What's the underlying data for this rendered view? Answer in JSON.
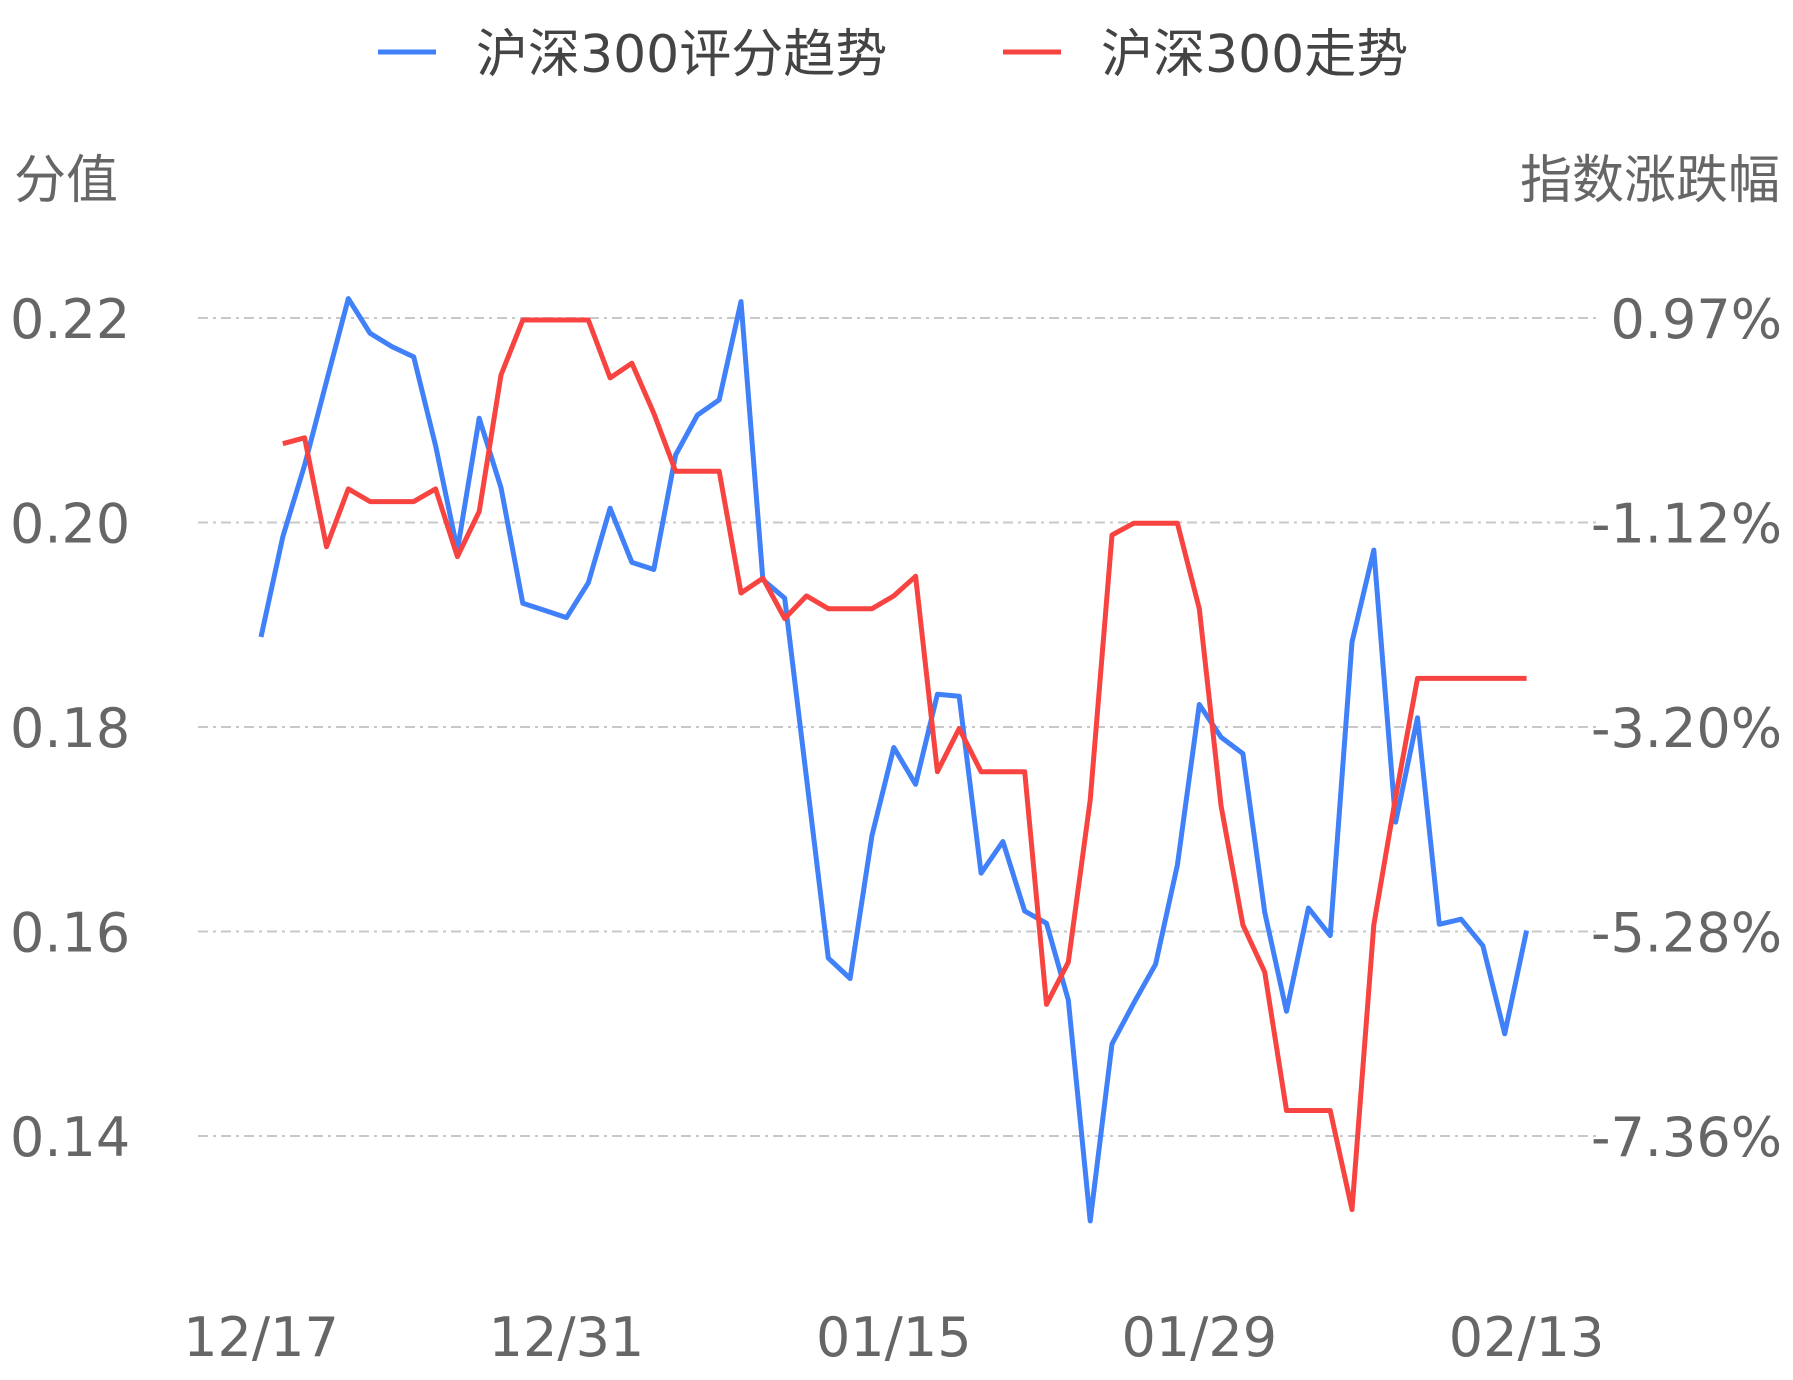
{
  "chart_data": {
    "type": "line",
    "legend": {
      "position": "top-center",
      "entries": [
        {
          "name": "沪深300评分趋势",
          "color": "#4080f8"
        },
        {
          "name": "沪深300走势",
          "color": "#f84440"
        }
      ]
    },
    "y_left": {
      "label": "分值",
      "ticks": [
        "0.22",
        "0.20",
        "0.18",
        "0.16",
        "0.14"
      ],
      "range": [
        0.14,
        0.22
      ]
    },
    "y_right": {
      "label": "指数涨跌幅",
      "ticks": [
        "0.97%",
        "-1.12%",
        "-3.20%",
        "-5.28%",
        "-7.36%"
      ],
      "range": [
        -7.36,
        0.97
      ]
    },
    "x_ticks": [
      {
        "label": "12/17",
        "index": 0
      },
      {
        "label": "12/31",
        "index": 14
      },
      {
        "label": "01/15",
        "index": 29
      },
      {
        "label": "01/29",
        "index": 43
      },
      {
        "label": "02/13",
        "index": 58
      }
    ],
    "grid": true,
    "series": [
      {
        "name": "沪深300评分趋势",
        "color": "#4080f8",
        "axis": "left",
        "values": [
          0.1888,
          0.1986,
          0.2056,
          0.2138,
          0.2219,
          0.2185,
          0.2172,
          0.2162,
          0.2075,
          0.1973,
          0.2102,
          0.2034,
          0.1921,
          0.1914,
          0.1907,
          0.1941,
          0.2014,
          0.1961,
          0.1954,
          0.2066,
          0.2105,
          0.212,
          0.2216,
          0.1944,
          0.1926,
          0.175,
          0.1574,
          0.1554,
          0.1694,
          0.178,
          0.1744,
          0.1832,
          0.183,
          0.1657,
          0.1688,
          0.162,
          0.1608,
          0.1533,
          0.1317,
          0.149,
          0.153,
          0.1568,
          0.1665,
          0.1822,
          0.179,
          0.1774,
          0.1619,
          0.1522,
          0.1623,
          0.1596,
          0.1883,
          0.1973,
          0.1707,
          0.1809,
          0.1607,
          0.1612,
          0.1586,
          0.15,
          0.1601
        ]
      },
      {
        "name": "沪深300走势",
        "color": "#f84440",
        "axis": "right",
        "values": [
          null,
          -0.31,
          -0.25,
          -1.36,
          -0.77,
          -0.9,
          -0.9,
          -0.9,
          -0.77,
          -1.46,
          -1.0,
          0.39,
          0.95,
          0.95,
          0.95,
          0.95,
          0.36,
          0.51,
          0.0,
          -0.59,
          -0.59,
          -0.59,
          -1.83,
          -1.68,
          -2.09,
          -1.86,
          -1.99,
          -1.99,
          -1.99,
          -1.86,
          -1.66,
          -3.65,
          -3.21,
          -3.65,
          -3.65,
          -3.65,
          -6.02,
          -5.59,
          -3.94,
          -1.24,
          -1.12,
          -1.12,
          -1.12,
          -1.99,
          -4.0,
          -5.21,
          -5.69,
          -7.1,
          -7.1,
          -7.1,
          -8.11,
          -5.21,
          -3.91,
          -2.7,
          -2.7,
          -2.7,
          -2.7,
          -2.7,
          -2.7
        ]
      }
    ]
  }
}
